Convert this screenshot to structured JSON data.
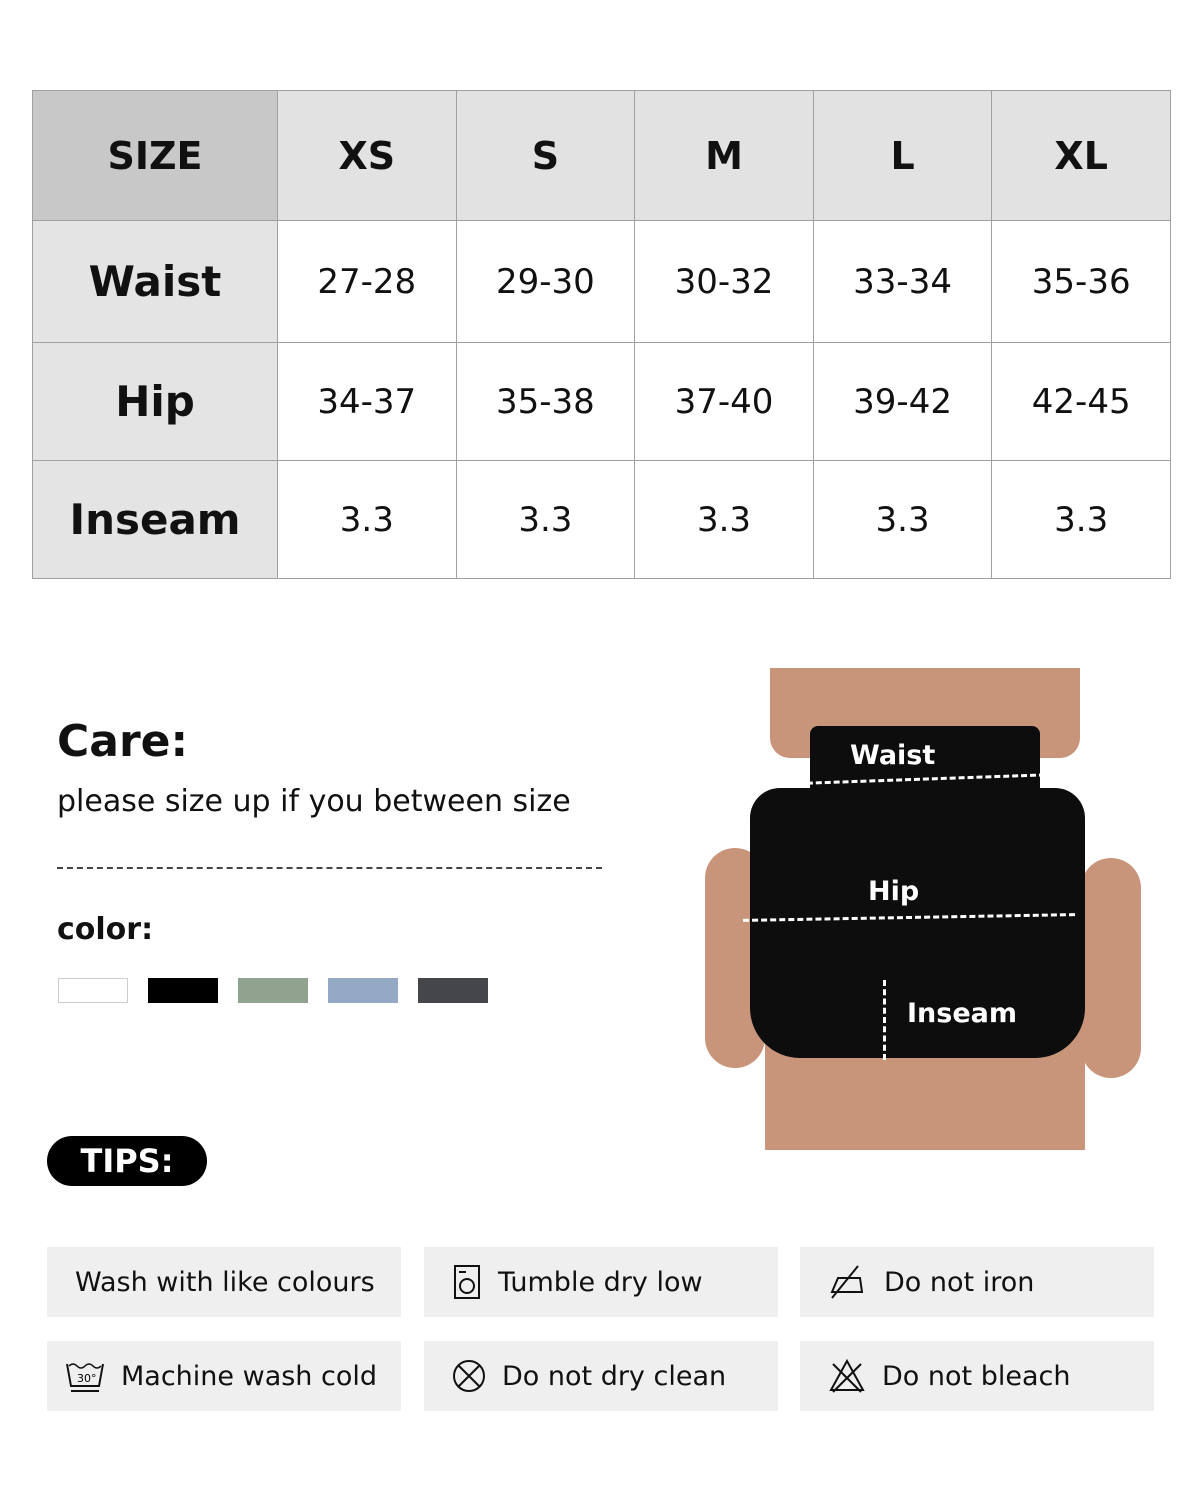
{
  "size_chart": {
    "header": [
      "SIZE",
      "XS",
      "S",
      "M",
      "L",
      "XL"
    ],
    "rows": [
      {
        "label": "Waist",
        "values": [
          "27-28",
          "29-30",
          "30-32",
          "33-34",
          "35-36"
        ]
      },
      {
        "label": "Hip",
        "values": [
          "34-37",
          "35-38",
          "37-40",
          "39-42",
          "42-45"
        ]
      },
      {
        "label": "Inseam",
        "values": [
          "3.3",
          "3.3",
          "3.3",
          "3.3",
          "3.3"
        ]
      }
    ]
  },
  "care": {
    "title": "Care:",
    "note": "please size up if you between size"
  },
  "color": {
    "label": "color:",
    "swatches": [
      "#ffffff",
      "#000000",
      "#8fa38f",
      "#93a9c4",
      "#45464a"
    ]
  },
  "photo": {
    "waist": "Waist",
    "hip": "Hip",
    "inseam": "Inseam"
  },
  "tips": {
    "label": "TIPS:",
    "items": [
      {
        "text": "Wash with like colours",
        "icon": ""
      },
      {
        "text": "Tumble dry low",
        "icon": "tumble-dry-icon"
      },
      {
        "text": "Do not iron",
        "icon": "no-iron-icon"
      },
      {
        "text": "Machine wash cold",
        "icon": "wash-30-icon"
      },
      {
        "text": "Do not dry clean",
        "icon": "no-dry-clean-icon"
      },
      {
        "text": "Do not bleach",
        "icon": "no-bleach-icon"
      }
    ]
  }
}
